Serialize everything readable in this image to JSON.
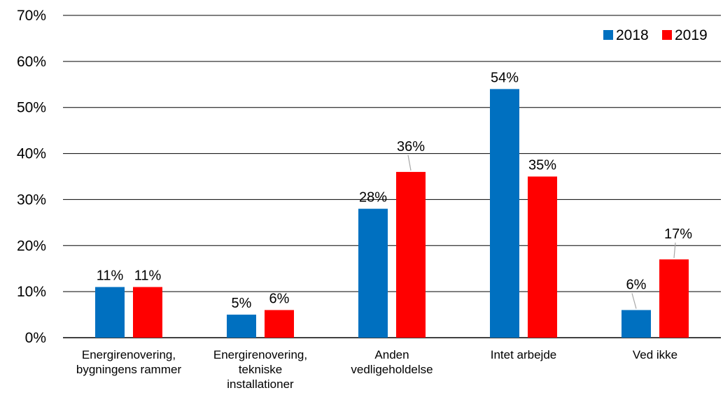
{
  "chart_data": {
    "type": "bar",
    "categories": [
      [
        "Energirenovering,",
        "bygningens rammer"
      ],
      [
        "Energirenovering,",
        "tekniske",
        "installationer"
      ],
      [
        "Anden",
        "vedligeholdelse"
      ],
      [
        "Intet arbejde"
      ],
      [
        "Ved ikke"
      ]
    ],
    "series": [
      {
        "name": "2018",
        "color": "#0070C0",
        "values": [
          11,
          5,
          28,
          54,
          6
        ],
        "labels": [
          "11%",
          "5%",
          "28%",
          "54%",
          "6%"
        ]
      },
      {
        "name": "2019",
        "color": "#FF0000",
        "values": [
          11,
          6,
          36,
          35,
          17
        ],
        "labels": [
          "11%",
          "6%",
          "36%",
          "35%",
          "17%"
        ]
      }
    ],
    "ylim": [
      0,
      70
    ],
    "yticks": [
      0,
      10,
      20,
      30,
      40,
      50,
      60,
      70
    ],
    "ytick_labels": [
      "0%",
      "10%",
      "20%",
      "30%",
      "40%",
      "50%",
      "60%",
      "70%"
    ],
    "grid": true,
    "legend_position": "top-right"
  }
}
